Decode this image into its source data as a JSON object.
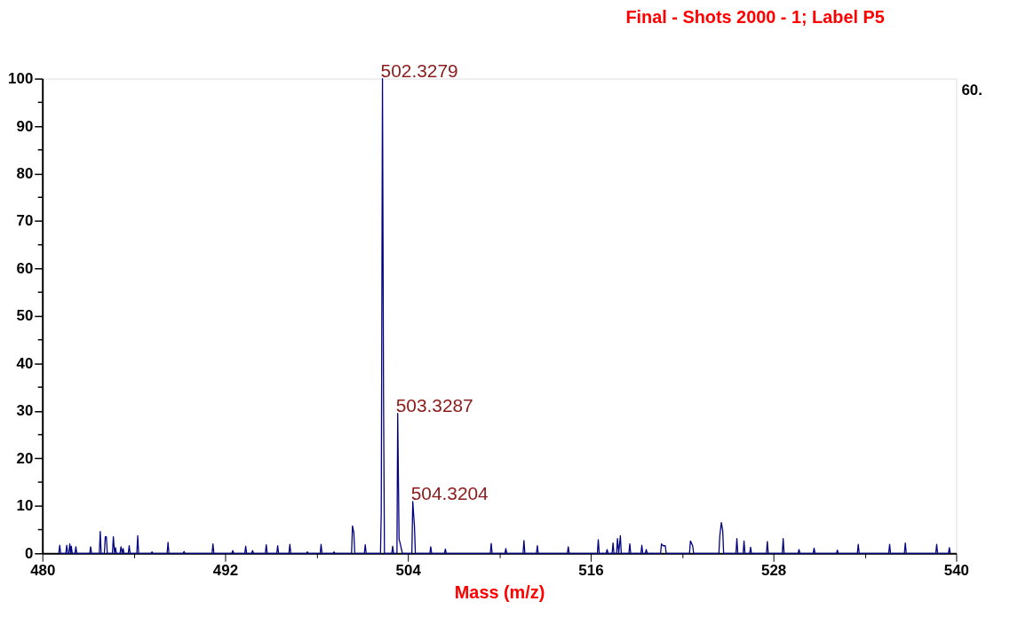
{
  "chart_data": {
    "type": "line",
    "title": "Final - Shots 2000 - 1; Label P5",
    "xlabel": "Mass (m/z)",
    "xlim": [
      480,
      540
    ],
    "xticks": [
      480,
      {
        "value": 486,
        "label": null
      },
      492,
      {
        "value": 498,
        "label": null
      },
      504,
      {
        "value": 510,
        "label": null
      },
      516,
      {
        "value": 522,
        "label": null
      },
      528,
      {
        "value": 534,
        "label": null
      },
      540
    ],
    "ylim": [
      0,
      100
    ],
    "yticks": [
      0,
      {
        "value": 5,
        "label": null
      },
      10,
      {
        "value": 15,
        "label": null
      },
      20,
      {
        "value": 25,
        "label": null
      },
      30,
      {
        "value": 35,
        "label": null
      },
      40,
      {
        "value": 45,
        "label": null
      },
      50,
      {
        "value": 55,
        "label": null
      },
      60,
      {
        "value": 65,
        "label": null
      },
      70,
      {
        "value": 75,
        "label": null
      },
      80,
      {
        "value": 85,
        "label": null
      },
      90,
      {
        "value": 95,
        "label": null
      },
      100
    ],
    "grid": false,
    "marker": "none",
    "line_style": "solid",
    "series": [
      {
        "color": "#000080",
        "x": [
          481.08,
          481.14,
          481.2,
          481.54,
          481.6,
          481.66,
          481.74,
          481.8,
          481.86,
          481.9,
          481.96,
          482.14,
          482.2,
          482.26,
          483.11,
          483.17,
          483.23,
          483.74,
          483.8,
          483.86,
          484.07,
          484.13,
          484.2,
          484.26,
          484.6,
          484.66,
          484.74,
          484.8,
          484.86,
          485.1,
          485.16,
          485.24,
          485.3,
          485.36,
          485.64,
          485.7,
          485.76,
          486.2,
          486.26,
          486.32,
          487.14,
          487.2,
          487.26,
          488.19,
          488.25,
          488.31,
          489.24,
          489.3,
          489.36,
          491.14,
          491.2,
          491.26,
          492.44,
          492.5,
          492.56,
          493.29,
          493.35,
          493.41,
          493.74,
          493.8,
          493.86,
          494.64,
          494.7,
          494.76,
          495.39,
          495.45,
          495.51,
          496.19,
          496.25,
          496.31,
          497.34,
          497.4,
          497.46,
          498.24,
          498.3,
          498.36,
          499.09,
          499.15,
          499.21,
          500.3,
          500.36,
          500.45,
          500.51,
          501.14,
          501.2,
          501.26,
          502.2,
          502.25,
          502.28,
          502.33,
          502.4,
          502.46,
          502.94,
          503.0,
          503.06,
          503.28,
          503.33,
          503.42,
          503.5,
          503.58,
          503.64,
          504.26,
          504.32,
          504.43,
          504.49,
          505.44,
          505.5,
          505.56,
          506.4,
          506.46,
          506.52,
          509.41,
          509.47,
          509.53,
          510.37,
          510.43,
          510.49,
          511.56,
          511.62,
          511.68,
          512.44,
          512.5,
          512.56,
          514.47,
          514.53,
          514.59,
          516.44,
          516.5,
          516.56,
          517.02,
          517.08,
          517.14,
          517.41,
          517.47,
          517.53,
          517.7,
          517.76,
          517.84,
          517.95,
          518.01,
          518.51,
          518.57,
          518.63,
          519.3,
          519.36,
          519.42,
          519.59,
          519.65,
          519.71,
          520.59,
          520.65,
          520.76,
          520.9,
          520.96,
          522.49,
          522.55,
          522.7,
          522.76,
          524.42,
          524.48,
          524.58,
          524.67,
          524.73,
          525.54,
          525.6,
          525.66,
          526.01,
          526.07,
          526.13,
          526.44,
          526.5,
          526.56,
          527.54,
          527.6,
          527.66,
          528.58,
          528.64,
          528.7,
          529.62,
          529.68,
          529.74,
          530.61,
          530.67,
          530.73,
          532.14,
          532.2,
          532.26,
          533.51,
          533.57,
          533.63,
          535.57,
          535.63,
          535.69,
          536.6,
          536.66,
          536.72,
          538.66,
          538.72,
          538.78,
          539.49,
          539.55,
          539.61
        ],
        "values": [
          0,
          1.7,
          0,
          0,
          1.7,
          0,
          0,
          2.0,
          0,
          1.5,
          0,
          0,
          1.4,
          0,
          0,
          1.4,
          0,
          0,
          4.6,
          0,
          0,
          3.5,
          3.5,
          0,
          0,
          3.5,
          0,
          1.2,
          0,
          0,
          1.4,
          0,
          1.0,
          0,
          0,
          1.6,
          0,
          0,
          3.7,
          0,
          0,
          0.3,
          0,
          0,
          2.3,
          0,
          0,
          0.4,
          0,
          0,
          2.0,
          0,
          0,
          0.6,
          0,
          0,
          1.5,
          0,
          0,
          0.6,
          0,
          0,
          1.8,
          0,
          0,
          1.6,
          0,
          0,
          1.9,
          0,
          0,
          0.3,
          0,
          0,
          1.9,
          0,
          0,
          0.3,
          0,
          0,
          5.8,
          4.4,
          0,
          0,
          1.8,
          0,
          0,
          8.8,
          41.5,
          100,
          33.2,
          0,
          0,
          1.5,
          0,
          0,
          29.5,
          3.0,
          2.0,
          0.8,
          0,
          0,
          10.9,
          5.7,
          0,
          0,
          1.4,
          0,
          0,
          0.9,
          0,
          0,
          2.1,
          0,
          0,
          1.0,
          0,
          0,
          2.7,
          0,
          0,
          1.6,
          0,
          0,
          1.4,
          0,
          0,
          2.9,
          0,
          0,
          0.8,
          0,
          0,
          2.2,
          0,
          0,
          3.1,
          0,
          3.7,
          0,
          0,
          2.0,
          0,
          0,
          1.7,
          0,
          0,
          0.8,
          0,
          0,
          2.0,
          1.6,
          1.6,
          0,
          0,
          2.6,
          1.6,
          0,
          0,
          3.7,
          6.5,
          4.8,
          0,
          0,
          3.1,
          0,
          0,
          2.6,
          0,
          0,
          1.3,
          0,
          0,
          2.5,
          0,
          0,
          3.1,
          0,
          0,
          0.8,
          0,
          0,
          1.1,
          0,
          0,
          0.7,
          0,
          0,
          1.9,
          0,
          0,
          1.9,
          0,
          0,
          2.2,
          0,
          0,
          1.9,
          0,
          0,
          1.2,
          0
        ]
      }
    ],
    "annotations": [
      {
        "text": "502.3279",
        "x": 502.33,
        "y": 100
      },
      {
        "text": "503.3287",
        "x": 503.33,
        "y": 29.5
      },
      {
        "text": "504.3204",
        "x": 504.32,
        "y": 10.9
      },
      "60."
    ]
  }
}
